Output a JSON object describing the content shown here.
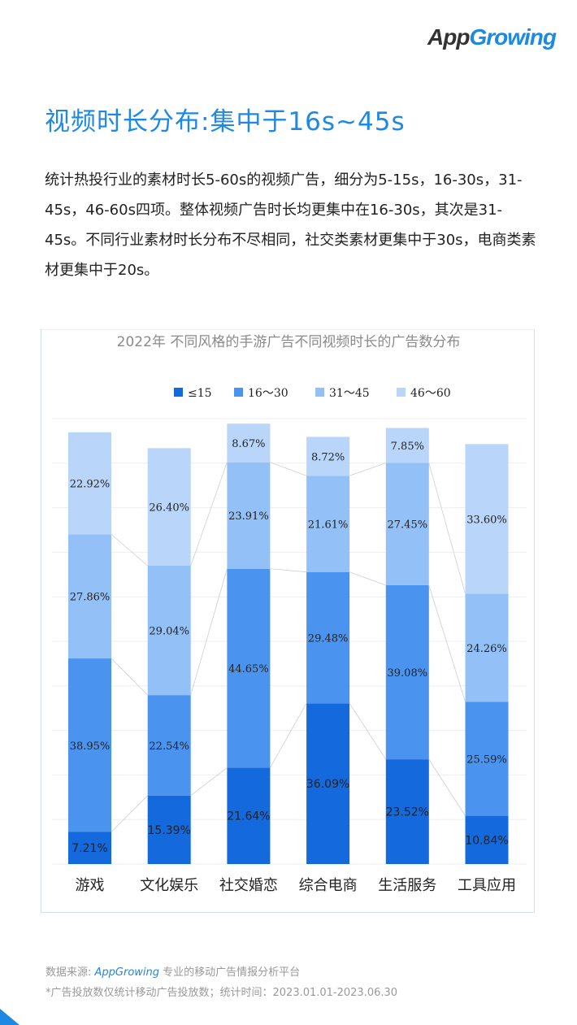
{
  "logo": {
    "prefix": "App",
    "suffix": "Growing"
  },
  "headline": "视频时长分布:集中于16s~45s",
  "intro": "统计热投行业的素材时长5-60s的视频广告，细分为5-15s，16-30s，31-45s，46-60s四项。整体视频广告时长均更集中在16-30s，其次是31-45s。不同行业素材时长分布不尽相同，社交类素材更集中于30s，电商类素材更集中于20s。",
  "chart_data": {
    "type": "bar",
    "stacked": true,
    "percent_stacked": true,
    "title": "2022年 不同风格的手游广告不同视频时长的广告数分布",
    "categories": [
      "游戏",
      "文化娱乐",
      "社交婚恋",
      "综合电商",
      "生活服务",
      "工具应用"
    ],
    "series": [
      {
        "name": "≤15",
        "color": "#1469dd",
        "values": [
          7.21,
          15.39,
          21.64,
          36.09,
          23.52,
          10.84
        ],
        "labels": [
          "7.21%",
          "15.39%",
          "21.64%",
          "36.09%",
          "23.52%",
          "10.84%"
        ]
      },
      {
        "name": "16～30",
        "color": "#4a93ef",
        "values": [
          38.95,
          22.54,
          44.65,
          29.48,
          39.08,
          25.59
        ],
        "labels": [
          "38.95%",
          "22.54%",
          "44.65%",
          "29.48%",
          "39.08%",
          "25.59%"
        ]
      },
      {
        "name": "31～45",
        "color": "#93c0f6",
        "values": [
          27.86,
          29.04,
          23.91,
          21.61,
          27.45,
          24.26
        ],
        "labels": [
          "27.86%",
          "29.04%",
          "23.91%",
          "21.61%",
          "27.45%",
          "24.26%"
        ]
      },
      {
        "name": "46～60",
        "color": "#b9d6fa",
        "values": [
          22.92,
          26.4,
          8.67,
          8.72,
          7.85,
          33.6
        ],
        "labels": [
          "22.92%",
          "26.40%",
          "8.67%",
          "8.72%",
          "7.85%",
          "33.60%"
        ]
      }
    ],
    "ylim": [
      0,
      100
    ],
    "legend": "top-center",
    "grid": true
  },
  "footer": {
    "source_prefix": "数据来源: ",
    "source_brand": "AppGrowing",
    "source_suffix": " 专业的移动广告情报分析平台",
    "note": "*广告投放数仅统计移动广告投放数；统计时间：2023.01.01-2023.06.30"
  }
}
